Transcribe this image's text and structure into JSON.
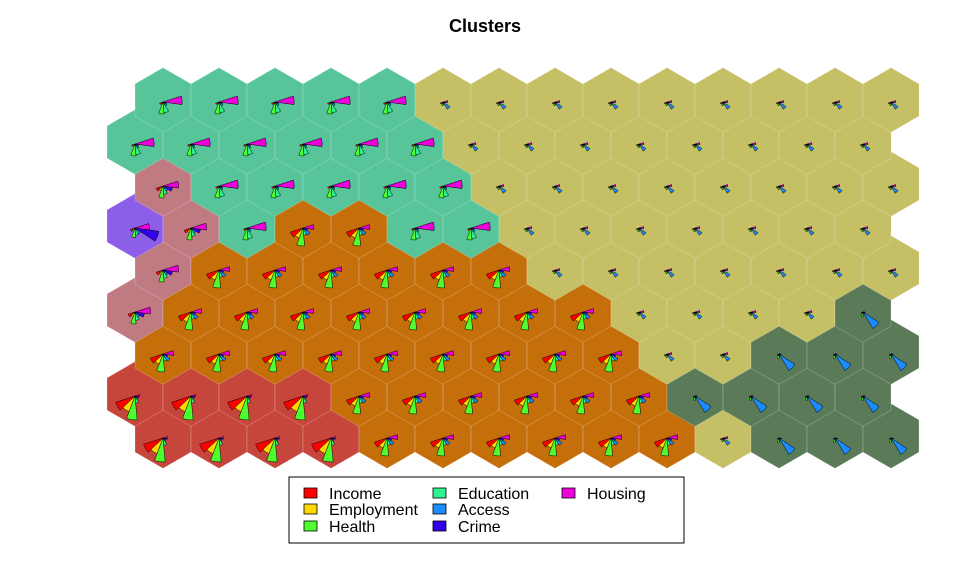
{
  "chart_data": {
    "type": "heatmap",
    "title": "Clusters",
    "grid": {
      "rows": 9,
      "cols": 14
    },
    "variables": [
      "Income",
      "Employment",
      "Health",
      "Education",
      "Access",
      "Crime",
      "Housing"
    ],
    "legend": {
      "placement": "bottom",
      "entries": [
        {
          "label": "Income",
          "color": "#ff0000"
        },
        {
          "label": "Employment",
          "color": "#ffd700"
        },
        {
          "label": "Health",
          "color": "#4dff2e"
        },
        {
          "label": "Education",
          "color": "#2ef28e"
        },
        {
          "label": "Access",
          "color": "#1a8cff"
        },
        {
          "label": "Crime",
          "color": "#3300ee"
        },
        {
          "label": "Housing",
          "color": "#ee00dd"
        }
      ]
    },
    "cluster_colors": {
      "A": "#c7463c",
      "B": "#c46f0a",
      "C": "#c5bf66",
      "D": "#5a7a58",
      "E": "#57c49a",
      "F": "#c07a82",
      "G": "#8d5fe8"
    },
    "cluster_rows": [
      "AAAABBBBBBCDDD",
      "AAAABBBBBBDDDD",
      "BBBBBBBBBCCDDD",
      "FBBBBBBBBCCCCD",
      "FBBBBBBCCCCCCC",
      "GFEBBEECCCCCCC",
      "FEEEEECCCCCCCC",
      "EEEEEECCCCCCCC",
      "EEEEECCCCCCCCC"
    ],
    "profiles": {
      "A": [
        0.85,
        0.7,
        1.0,
        0.3,
        0.15,
        0.15,
        0.2
      ],
      "B": [
        0.55,
        0.45,
        0.75,
        0.3,
        0.35,
        0.2,
        0.45
      ],
      "C": [
        0.12,
        0.1,
        0.15,
        0.1,
        0.35,
        0.1,
        0.2
      ],
      "D": [
        0.08,
        0.08,
        0.18,
        0.12,
        0.8,
        0.1,
        0.05
      ],
      "E": [
        0.15,
        0.1,
        0.5,
        0.45,
        0.2,
        0.15,
        0.8
      ],
      "F": [
        0.3,
        0.2,
        0.5,
        0.35,
        0.25,
        0.4,
        0.65
      ],
      "G": [
        0.2,
        0.15,
        0.4,
        0.3,
        0.3,
        1.0,
        0.6
      ]
    }
  }
}
